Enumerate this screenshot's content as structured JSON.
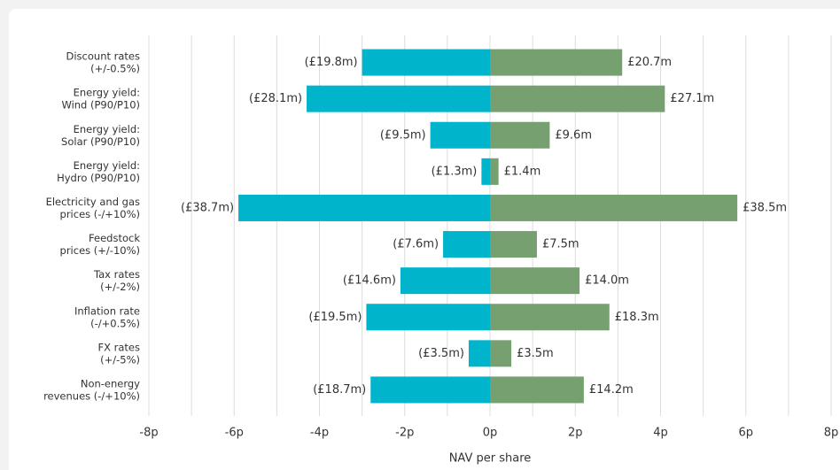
{
  "chart_data": {
    "type": "tornado",
    "x_axis_label": "NAV per share",
    "categories": [
      "Discount rates\n(+/-0.5%)",
      "Energy yield:\nWind (P90/P10)",
      "Energy yield:\nSolar (P90/P10)",
      "Energy yield:\nHydro (P90/P10)",
      "Electricity and gas\nprices (-/+10%)",
      "Feedstock\nprices (+/-10%)",
      "Tax rates\n(+/-2%)",
      "Inflation rate\n(-/+0.5%)",
      "FX rates\n(+/-5%)",
      "Non-energy\nrevenues (-/+10%)"
    ],
    "series": [
      {
        "color": "#00b4cc",
        "values": [
          -3.0,
          -4.3,
          -1.4,
          -0.2,
          -5.9,
          -1.1,
          -2.1,
          -2.9,
          -0.5,
          -2.8
        ],
        "impact_labels": [
          "(£19.8m)",
          "(£28.1m)",
          "(£9.5m)",
          "(£1.3m)",
          "(£38.7m)",
          "(£7.6m)",
          "(£14.6m)",
          "(£19.5m)",
          "(£3.5m)",
          "(£18.7m)"
        ]
      },
      {
        "color": "#76a06f",
        "values": [
          3.1,
          4.1,
          1.4,
          0.2,
          5.8,
          1.1,
          2.1,
          2.8,
          0.5,
          2.2
        ],
        "impact_labels": [
          "£20.7m",
          "£27.1m",
          "£9.6m",
          "£1.4m",
          "£38.5m",
          "£7.5m",
          "£14.0m",
          "£18.3m",
          "£3.5m",
          "£14.2m"
        ]
      }
    ],
    "xlim": [
      -8,
      8
    ],
    "xticks": [
      {
        "value": -8,
        "label": "-8p"
      },
      {
        "value": -6,
        "label": "-6p"
      },
      {
        "value": -4,
        "label": "-4p"
      },
      {
        "value": -2,
        "label": "-2p"
      },
      {
        "value": 0,
        "label": "0p"
      },
      {
        "value": 2,
        "label": "2p"
      },
      {
        "value": 4,
        "label": "4p"
      },
      {
        "value": 6,
        "label": "6p"
      },
      {
        "value": 8,
        "label": "8p"
      }
    ],
    "minor_xticks": [
      -7,
      -5,
      -3,
      -1,
      1,
      3,
      5,
      7
    ],
    "grid": true
  }
}
